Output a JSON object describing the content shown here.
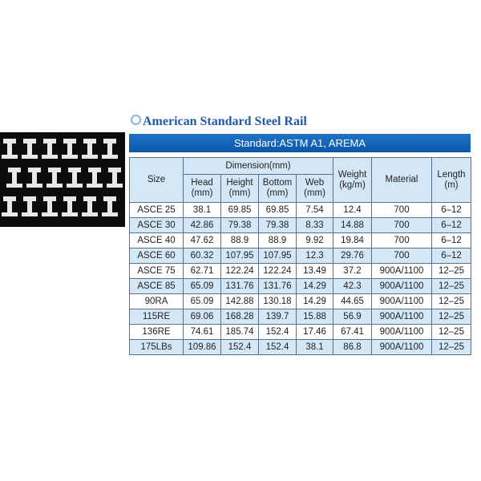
{
  "title": "American Standard Steel Rail",
  "standard": "Standard:ASTM A1, AREMA",
  "headers": {
    "size": "Size",
    "dimension": "Dimension(mm)",
    "head": [
      "Head",
      "(mm)"
    ],
    "height": [
      "Height",
      "(mm)"
    ],
    "bottom": [
      "Bottom",
      "(mm)"
    ],
    "web": [
      "Web",
      "(mm)"
    ],
    "weight": [
      "Weight",
      "(kg/m)"
    ],
    "material": "Material",
    "length": [
      "Length",
      "(m)"
    ]
  },
  "rows": [
    [
      "ASCE 25",
      "38.1",
      "69.85",
      "69.85",
      "7.54",
      "12.4",
      "700",
      "6–12"
    ],
    [
      "ASCE 30",
      "42.86",
      "79.38",
      "79.38",
      "8.33",
      "14.88",
      "700",
      "6–12"
    ],
    [
      "ASCE 40",
      "47.62",
      "88.9",
      "88.9",
      "9.92",
      "19.84",
      "700",
      "6–12"
    ],
    [
      "ASCE 60",
      "60.32",
      "107.95",
      "107.95",
      "12.3",
      "29.76",
      "700",
      "6–12"
    ],
    [
      "ASCE 75",
      "62.71",
      "122.24",
      "122.24",
      "13.49",
      "37.2",
      "900A/1100",
      "12–25"
    ],
    [
      "ASCE 85",
      "65.09",
      "131.76",
      "131.76",
      "14.29",
      "42.3",
      "900A/1100",
      "12–25"
    ],
    [
      "90RA",
      "65.09",
      "142.88",
      "130.18",
      "14.29",
      "44.65",
      "900A/1100",
      "12–25"
    ],
    [
      "115RE",
      "69.06",
      "168.28",
      "139.7",
      "15.88",
      "56.9",
      "900A/1100",
      "12–25"
    ],
    [
      "136RE",
      "74.61",
      "185.74",
      "152.4",
      "17.46",
      "67.41",
      "900A/1100",
      "12–25"
    ],
    [
      "175LBs",
      "109.86",
      "152.4",
      "152.4",
      "38.1",
      "86.8",
      "900A/1100",
      "12–25"
    ]
  ],
  "colors": {
    "title": "#1f5aa8",
    "bar": "#1565b8",
    "alt_row": "#d4e7f6"
  }
}
